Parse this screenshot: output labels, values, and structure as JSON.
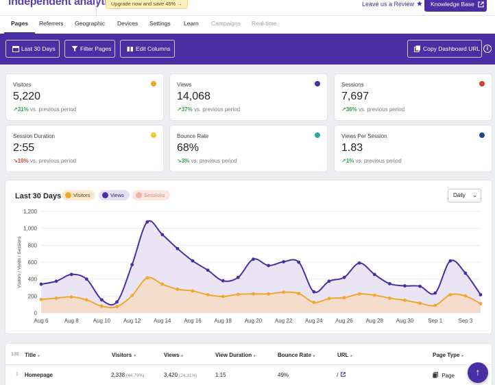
{
  "header": {
    "logo_text": "independent analytics",
    "upgrade_text": "Upgrade now and save 45%",
    "upgrade_arrow": "→",
    "review_text": "Leave us a Review",
    "knowledge_base_text": "Knowledge Base"
  },
  "tabs": [
    {
      "label": "Pages",
      "active": true
    },
    {
      "label": "Referrers"
    },
    {
      "label": "Geographic"
    },
    {
      "label": "Devices"
    },
    {
      "label": "Settings"
    },
    {
      "label": "Learn"
    },
    {
      "label": "Campaigns",
      "disabled": true
    },
    {
      "label": "Real-time",
      "disabled": true
    }
  ],
  "toolbar": {
    "date_range": "Last 30 Days",
    "filter": "Filter Pages",
    "columns": "Edit Columns",
    "copy_url": "Copy Dashboard URL",
    "info": "i"
  },
  "stats": [
    {
      "label": "Visitors",
      "value": "5,220",
      "arrow": "↗",
      "change": "31%",
      "direction": "up",
      "compare": "vs. previous period",
      "color": "#f0a72e"
    },
    {
      "label": "Views",
      "value": "14,068",
      "arrow": "↗",
      "change": "37%",
      "direction": "up",
      "compare": "vs. previous period",
      "color": "#4a2ea3"
    },
    {
      "label": "Sessions",
      "value": "7,697",
      "arrow": "↗",
      "change": "36%",
      "direction": "up",
      "compare": "vs. previous period",
      "color": "#d1413a"
    },
    {
      "label": "Session Duration",
      "value": "2:55",
      "arrow": "↘",
      "change": "10%",
      "direction": "down",
      "compare": "vs. previous period",
      "color": "#f4c92f"
    },
    {
      "label": "Bounce Rate",
      "value": "68%",
      "arrow": "↘",
      "change": "3%",
      "direction": "up",
      "compare": "vs. previous period",
      "color": "#2aa7a3"
    },
    {
      "label": "Views Per Session",
      "value": "1.83",
      "arrow": "↗",
      "change": "1%",
      "direction": "up",
      "compare": "vs. previous period",
      "color": "#21468f"
    }
  ],
  "chart": {
    "title": "Last 30 Days",
    "interval": "Daily",
    "legend": [
      {
        "label": "Visitors",
        "color": "#f0a72e",
        "bg": "#fdebd0",
        "text": "#5a3d0c"
      },
      {
        "label": "Views",
        "color": "#4a2ea3",
        "bg": "#e6e0f4",
        "text": "#2b1a66"
      },
      {
        "label": "Sessions",
        "color": "#f2b3a6",
        "bg": "#fbe6e1",
        "text": "#c98d80"
      }
    ]
  },
  "chart_data": {
    "type": "area",
    "title": "Last 30 Days",
    "ylabel": "Visitors / Views / Sessions",
    "ylim": [
      0,
      1200
    ],
    "yticks": [
      0,
      200,
      400,
      600,
      800,
      1000,
      1200
    ],
    "ytick_labels": [
      "0",
      "200",
      "400",
      "600",
      "800",
      "1,000",
      "1,200"
    ],
    "x_tick_labels": [
      "Aug 6",
      "Aug 8",
      "Aug 10",
      "Aug 12",
      "Aug 14",
      "Aug 16",
      "Aug 18",
      "Aug 20",
      "Aug 22",
      "Aug 24",
      "Aug 26",
      "Aug 28",
      "Aug 30",
      "Sep 1",
      "Sep 3"
    ],
    "x": [
      "Aug 6",
      "Aug 7",
      "Aug 8",
      "Aug 9",
      "Aug 10",
      "Aug 11",
      "Aug 12",
      "Aug 13",
      "Aug 14",
      "Aug 15",
      "Aug 16",
      "Aug 17",
      "Aug 18",
      "Aug 19",
      "Aug 20",
      "Aug 21",
      "Aug 22",
      "Aug 23",
      "Aug 24",
      "Aug 25",
      "Aug 26",
      "Aug 27",
      "Aug 28",
      "Aug 29",
      "Aug 30",
      "Aug 31",
      "Sep 1",
      "Sep 2",
      "Sep 3",
      "Sep 4"
    ],
    "series": [
      {
        "name": "Views",
        "color": "#4a2ea3",
        "values": [
          340,
          375,
          455,
          400,
          155,
          130,
          570,
          1075,
          925,
          760,
          615,
          505,
          380,
          420,
          635,
          560,
          605,
          600,
          250,
          375,
          420,
          590,
          455,
          345,
          320,
          315,
          235,
          615,
          470,
          215
        ]
      },
      {
        "name": "Visitors",
        "color": "#f0a72e",
        "values": [
          160,
          175,
          190,
          155,
          80,
          75,
          205,
          415,
          340,
          280,
          260,
          215,
          195,
          220,
          225,
          225,
          245,
          230,
          125,
          170,
          180,
          225,
          210,
          175,
          150,
          115,
          90,
          215,
          200,
          110
        ]
      }
    ]
  },
  "table": {
    "count": "138",
    "headers": [
      "Title",
      "Visitors",
      "Views",
      "View Duration",
      "Bounce Rate",
      "URL",
      "Page Type"
    ],
    "sort_arrows": [
      "▸",
      "▾",
      "▸",
      "▸",
      "▸",
      "▸",
      "▸"
    ],
    "rows": [
      {
        "index": "1",
        "title": "Homepage",
        "visitors": "2,338",
        "visitors_pct": "(44.79%)",
        "views": "3,420",
        "views_pct": "(24.31%)",
        "duration": "1:15",
        "bounce": "49%",
        "url": "/",
        "page_type": "Page"
      }
    ]
  }
}
